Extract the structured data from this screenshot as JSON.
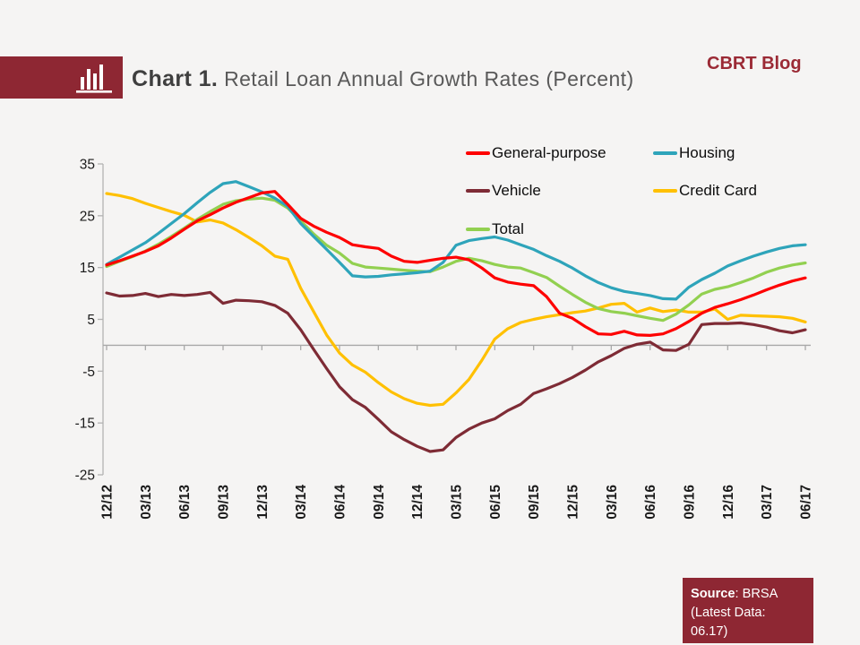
{
  "header": {
    "title_prefix": "Chart 1.",
    "title_rest": " Retail Loan Annual Growth Rates (Percent)",
    "brand": "CBRT Blog"
  },
  "source_box": {
    "label_bold": "Source",
    "label_rest": ": BRSA",
    "line2": "(Latest Data: 06.17)"
  },
  "colors": {
    "banner": "#8e2733",
    "brand_text": "#9b2a35",
    "axis_line": "#b3b3b3",
    "zero_line": "#a8a8a8",
    "background": "#f5f4f3"
  },
  "chart_data": {
    "type": "line",
    "title": "Retail Loan Annual Growth Rates (Percent)",
    "ylim": [
      -25,
      35
    ],
    "yticks": [
      35,
      25,
      15,
      5,
      -5,
      -15,
      -25
    ],
    "grid": "zero-line-only",
    "legend_position": "top-right-inside",
    "x_tick_labels": [
      "12/12",
      "03/13",
      "06/13",
      "09/13",
      "12/13",
      "03/14",
      "06/14",
      "09/14",
      "12/14",
      "03/15",
      "06/15",
      "09/15",
      "12/15",
      "03/16",
      "06/16",
      "09/16",
      "12/16",
      "03/17",
      "06/17"
    ],
    "points_per_tick": 3,
    "series": [
      {
        "name": "General-purpose",
        "color": "#fe0000",
        "values": [
          15.5,
          16.3,
          17.2,
          18.1,
          19.2,
          20.7,
          22.4,
          24.0,
          25.2,
          26.5,
          27.6,
          28.5,
          29.4,
          29.7,
          27.2,
          24.5,
          23.0,
          21.8,
          20.8,
          19.4,
          19.0,
          18.7,
          17.2,
          16.2,
          16.0,
          16.4,
          16.8,
          17.0,
          16.5,
          14.9,
          13.0,
          12.2,
          11.8,
          11.5,
          9.4,
          6.2,
          5.2,
          3.6,
          2.2,
          2.1,
          2.7,
          2.0,
          1.9,
          2.2,
          3.2,
          4.6,
          6.2,
          7.3,
          8.0,
          8.8,
          9.7,
          10.7,
          11.6,
          12.4,
          13.0
        ]
      },
      {
        "name": "Housing",
        "color": "#2ea4ba",
        "values": [
          15.6,
          17.0,
          18.4,
          19.8,
          21.6,
          23.5,
          25.4,
          27.5,
          29.5,
          31.2,
          31.6,
          30.6,
          29.6,
          28.4,
          26.8,
          23.5,
          21.0,
          18.5,
          16.0,
          13.4,
          13.2,
          13.3,
          13.6,
          13.8,
          14.0,
          14.3,
          16.0,
          19.3,
          20.2,
          20.6,
          20.9,
          20.3,
          19.4,
          18.5,
          17.3,
          16.2,
          14.9,
          13.4,
          12.1,
          11.1,
          10.4,
          10.0,
          9.6,
          9.0,
          8.9,
          11.2,
          12.7,
          13.9,
          15.3,
          16.3,
          17.2,
          18.0,
          18.7,
          19.2,
          19.4
        ]
      },
      {
        "name": "Vehicle",
        "color": "#7e2b35",
        "values": [
          10.1,
          9.5,
          9.6,
          10.0,
          9.4,
          9.8,
          9.6,
          9.8,
          10.2,
          8.1,
          8.7,
          8.6,
          8.4,
          7.7,
          6.2,
          3.0,
          -0.8,
          -4.5,
          -8.0,
          -10.5,
          -12.0,
          -14.3,
          -16.7,
          -18.2,
          -19.5,
          -20.5,
          -20.2,
          -17.8,
          -16.2,
          -15.0,
          -14.2,
          -12.6,
          -11.4,
          -9.3,
          -8.4,
          -7.4,
          -6.2,
          -4.8,
          -3.2,
          -2.0,
          -0.6,
          0.2,
          0.6,
          -0.9,
          -1.0,
          0.2,
          4.0,
          4.2,
          4.2,
          4.3,
          4.0,
          3.5,
          2.8,
          2.4,
          3.0
        ]
      },
      {
        "name": "Credit Card",
        "color": "#ffc000",
        "values": [
          29.3,
          28.9,
          28.3,
          27.4,
          26.6,
          25.8,
          25.1,
          23.8,
          24.2,
          23.6,
          22.3,
          20.8,
          19.2,
          17.2,
          16.6,
          11.0,
          6.5,
          2.0,
          -1.5,
          -3.8,
          -5.2,
          -7.2,
          -9.0,
          -10.3,
          -11.2,
          -11.6,
          -11.4,
          -9.2,
          -6.6,
          -2.9,
          1.2,
          3.2,
          4.4,
          5.0,
          5.5,
          5.9,
          6.3,
          6.6,
          7.2,
          7.9,
          8.1,
          6.4,
          7.2,
          6.5,
          6.8,
          6.4,
          6.4,
          7.0,
          5.0,
          5.8,
          5.7,
          5.6,
          5.5,
          5.2,
          4.5
        ]
      },
      {
        "name": "Total",
        "color": "#92d050",
        "values": [
          15.2,
          16.2,
          17.1,
          18.2,
          19.5,
          21.0,
          22.6,
          24.3,
          25.8,
          27.2,
          27.9,
          28.2,
          28.4,
          28.0,
          26.5,
          24.0,
          21.5,
          19.3,
          17.8,
          15.8,
          15.1,
          14.9,
          14.7,
          14.5,
          14.3,
          14.2,
          15.1,
          16.2,
          16.8,
          16.3,
          15.6,
          15.1,
          14.9,
          14.0,
          13.1,
          11.4,
          9.8,
          8.3,
          7.1,
          6.5,
          6.2,
          5.7,
          5.2,
          4.8,
          6.0,
          7.8,
          9.9,
          10.8,
          11.3,
          12.1,
          13.0,
          14.1,
          14.9,
          15.5,
          15.9
        ]
      }
    ]
  }
}
